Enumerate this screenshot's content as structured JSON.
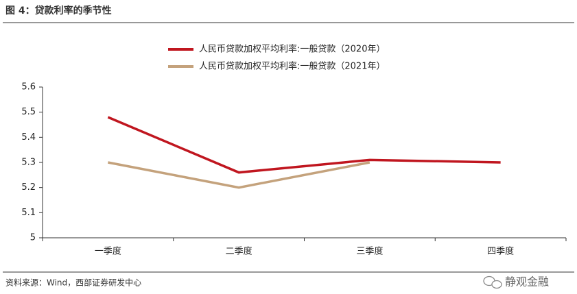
{
  "chart_data": {
    "type": "line",
    "title": "图 4：贷款利率的季节性",
    "source": "资料来源：Wind，西部证券研发中心",
    "watermark": "静观金融",
    "categories": [
      "一季度",
      "二季度",
      "三季度",
      "四季度"
    ],
    "series": [
      {
        "name": "人民币贷款加权平均利率:一般贷款（2020年）",
        "color": "#c0161f",
        "values": [
          5.48,
          5.26,
          5.31,
          5.3
        ]
      },
      {
        "name": "人民币贷款加权平均利率:一般贷款（2021年）",
        "color": "#c4a27c",
        "values": [
          5.3,
          5.2,
          5.3,
          null
        ]
      }
    ],
    "ylim": [
      5,
      5.6
    ],
    "yticks": [
      5,
      5.1,
      5.2,
      5.3,
      5.4,
      5.5,
      5.6
    ],
    "grid": false,
    "legend": "top"
  }
}
